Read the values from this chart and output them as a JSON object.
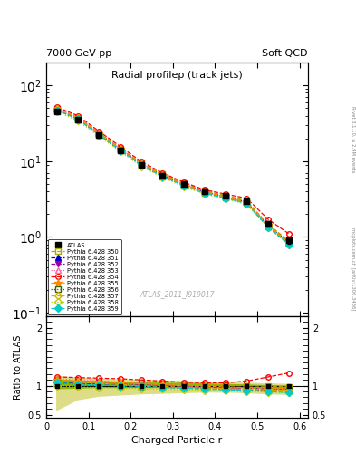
{
  "title": "Radial profileρ (track jets)",
  "header_left": "7000 GeV pp",
  "header_right": "Soft QCD",
  "xlabel": "Charged Particle r",
  "ylabel_ratio": "Ratio to ATLAS",
  "watermark": "ATLAS_2011_I919017",
  "right_label_top": "Rivet 3.1.10, ≥ 2.9M events",
  "right_label_bot": "mcplots.cern.ch [arXiv:1306.3436]",
  "x": [
    0.025,
    0.075,
    0.125,
    0.175,
    0.225,
    0.275,
    0.325,
    0.375,
    0.425,
    0.475,
    0.525,
    0.575
  ],
  "atlas_y": [
    45,
    35,
    22,
    14,
    9,
    6.5,
    5.0,
    4.0,
    3.5,
    3.0,
    1.5,
    0.9
  ],
  "atlas_yerr": [
    2.5,
    2.0,
    1.2,
    0.9,
    0.55,
    0.42,
    0.32,
    0.28,
    0.22,
    0.22,
    0.12,
    0.09
  ],
  "ylim_main": [
    0.09,
    200
  ],
  "ylim_ratio": [
    0.45,
    2.2
  ],
  "series": [
    {
      "label": "Pythia 6.428 350",
      "color": "#aaaa00",
      "linestyle": "--",
      "marker": "s",
      "fillstyle": "none",
      "ratio": [
        1.1,
        1.08,
        1.07,
        1.06,
        1.05,
        1.04,
        1.03,
        1.02,
        1.01,
        1.0,
        0.99,
        0.98
      ]
    },
    {
      "label": "Pythia 6.428 351",
      "color": "#0000cc",
      "linestyle": "--",
      "marker": "^",
      "fillstyle": "full",
      "ratio": [
        1.05,
        1.04,
        1.03,
        1.02,
        1.01,
        1.0,
        0.99,
        0.98,
        0.97,
        0.96,
        0.95,
        0.94
      ]
    },
    {
      "label": "Pythia 6.428 352",
      "color": "#9900aa",
      "linestyle": "--",
      "marker": "v",
      "fillstyle": "full",
      "ratio": [
        1.08,
        1.06,
        1.05,
        1.03,
        1.02,
        1.0,
        0.99,
        0.97,
        0.96,
        0.94,
        0.93,
        0.91
      ]
    },
    {
      "label": "Pythia 6.428 353",
      "color": "#ff66aa",
      "linestyle": ":",
      "marker": "^",
      "fillstyle": "none",
      "ratio": [
        1.12,
        1.1,
        1.08,
        1.06,
        1.04,
        1.02,
        1.0,
        0.98,
        0.97,
        0.96,
        0.95,
        0.94
      ]
    },
    {
      "label": "Pythia 6.428 354",
      "color": "#ff0000",
      "linestyle": "--",
      "marker": "o",
      "fillstyle": "none",
      "ratio": [
        1.15,
        1.14,
        1.13,
        1.12,
        1.1,
        1.08,
        1.06,
        1.05,
        1.05,
        1.08,
        1.15,
        1.22
      ]
    },
    {
      "label": "Pythia 6.428 355",
      "color": "#ff8800",
      "linestyle": "--",
      "marker": "*",
      "fillstyle": "full",
      "ratio": [
        1.1,
        1.08,
        1.06,
        1.05,
        1.03,
        1.02,
        1.0,
        0.99,
        0.98,
        0.97,
        0.96,
        0.95
      ]
    },
    {
      "label": "Pythia 6.428 356",
      "color": "#336600",
      "linestyle": ":",
      "marker": "s",
      "fillstyle": "none",
      "ratio": [
        1.05,
        1.02,
        1.0,
        0.99,
        0.98,
        0.97,
        0.96,
        0.95,
        0.94,
        0.93,
        0.92,
        0.91
      ]
    },
    {
      "label": "Pythia 6.428 357",
      "color": "#ddaa00",
      "linestyle": "--",
      "marker": "D",
      "fillstyle": "none",
      "ratio": [
        1.08,
        1.06,
        1.04,
        1.02,
        1.0,
        0.99,
        0.97,
        0.96,
        0.95,
        0.94,
        0.93,
        0.92
      ]
    },
    {
      "label": "Pythia 6.428 358",
      "color": "#bbcc00",
      "linestyle": ":",
      "marker": "D",
      "fillstyle": "none",
      "ratio": [
        1.0,
        0.98,
        0.97,
        0.96,
        0.95,
        0.94,
        0.93,
        0.92,
        0.91,
        0.9,
        0.89,
        0.88
      ]
    },
    {
      "label": "Pythia 6.428 359",
      "color": "#00cccc",
      "linestyle": "--",
      "marker": "D",
      "fillstyle": "full",
      "ratio": [
        1.05,
        1.03,
        1.01,
        1.0,
        0.99,
        0.97,
        0.96,
        0.94,
        0.93,
        0.92,
        0.9,
        0.88
      ]
    }
  ],
  "band_inner_color": "#88bb00",
  "band_outer_color": "#dddd88",
  "band_inner_ratio_low": [
    0.95,
    0.96,
    0.97,
    0.97,
    0.97,
    0.97,
    0.97,
    0.97,
    0.97,
    0.97,
    0.95,
    0.94
  ],
  "band_inner_ratio_high": [
    1.1,
    1.08,
    1.07,
    1.06,
    1.05,
    1.04,
    1.04,
    1.03,
    1.02,
    1.01,
    1.0,
    0.99
  ],
  "band_outer_ratio_low": [
    0.58,
    0.76,
    0.82,
    0.84,
    0.86,
    0.87,
    0.88,
    0.89,
    0.89,
    0.88,
    0.86,
    0.85
  ],
  "band_outer_ratio_high": [
    1.16,
    1.13,
    1.11,
    1.1,
    1.09,
    1.08,
    1.07,
    1.06,
    1.05,
    1.04,
    1.03,
    1.02
  ]
}
